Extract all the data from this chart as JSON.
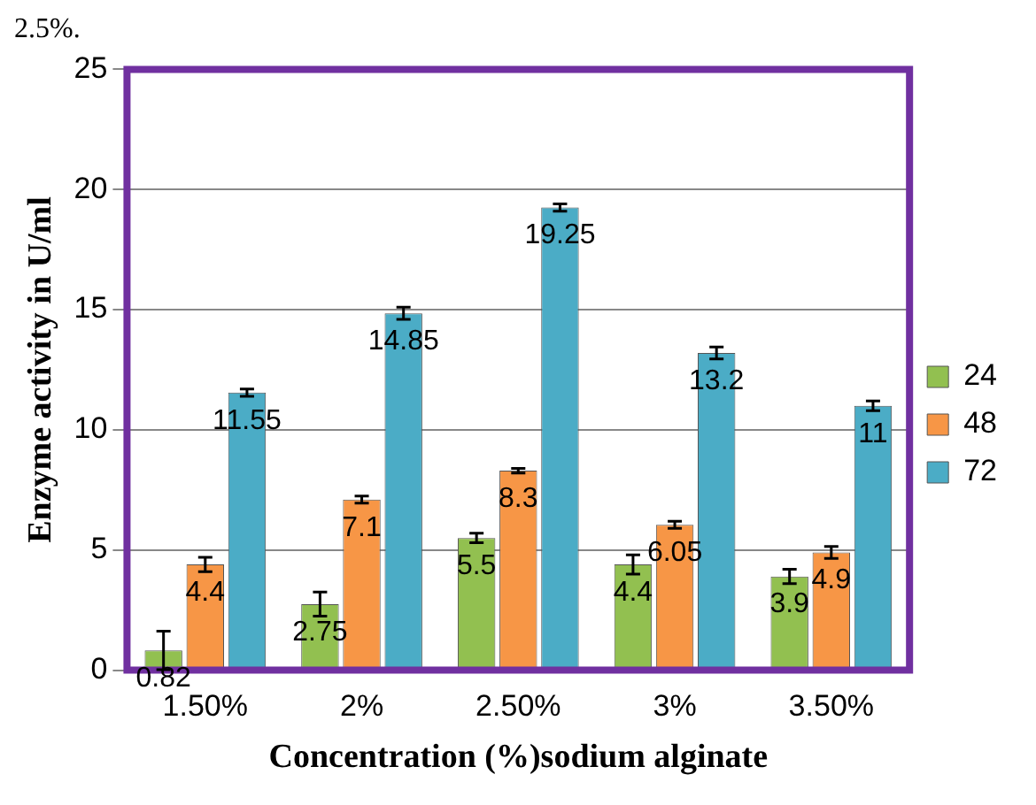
{
  "chart_data": {
    "type": "bar",
    "xlabel": "Concentration (%)sodium alginate",
    "ylabel": "Enzyme activity in U/ml",
    "annotations": [
      "2.5%."
    ],
    "categories": [
      "1.50%",
      "2%",
      "2.50%",
      "3%",
      "3.50%"
    ],
    "series": [
      {
        "name": "24",
        "color": "#92c050",
        "values": [
          0.82,
          2.75,
          5.5,
          4.4,
          3.9
        ],
        "errors": [
          0.8,
          0.5,
          0.2,
          0.4,
          0.3
        ]
      },
      {
        "name": "48",
        "color": "#f79646",
        "values": [
          4.4,
          7.1,
          8.3,
          6.05,
          4.9
        ],
        "errors": [
          0.3,
          0.15,
          0.1,
          0.15,
          0.25
        ]
      },
      {
        "name": "72",
        "color": "#4bacc6",
        "values": [
          11.55,
          14.85,
          19.25,
          13.2,
          11
        ],
        "errors": [
          0.15,
          0.25,
          0.15,
          0.25,
          0.2
        ]
      }
    ],
    "ylim": [
      0,
      25
    ],
    "yticks": [
      0,
      5,
      10,
      15,
      20,
      25
    ],
    "grid": "y",
    "legend": "right",
    "data_labels": true
  }
}
